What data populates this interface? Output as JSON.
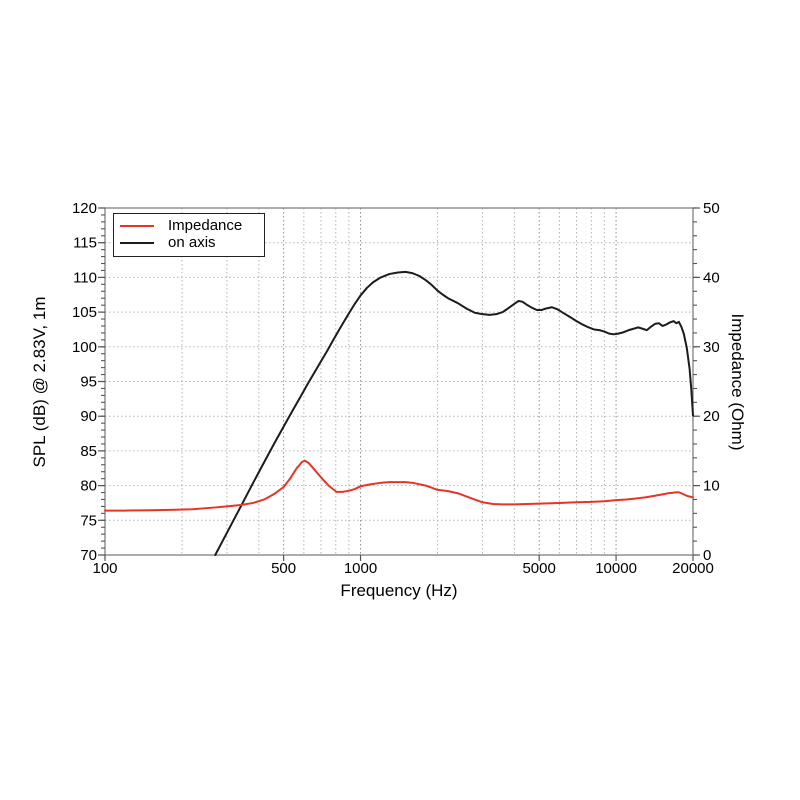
{
  "page": {
    "background": "#ffffff"
  },
  "chart_data": {
    "type": "line",
    "title": "",
    "xlabel": "Frequency (Hz)",
    "ylabel_left": "SPL (dB) @ 2.83V, 1m",
    "ylabel_right": "Impedance (Ohm)",
    "x_scale": "log",
    "x_range": [
      100,
      20000
    ],
    "y_left_range": [
      70,
      120
    ],
    "y_right_range": [
      0,
      50
    ],
    "x_ticks_labeled": [
      100,
      500,
      1000,
      5000,
      10000,
      20000
    ],
    "x_gridlines_major": [
      500,
      1000,
      5000,
      10000
    ],
    "x_gridlines_minor": [
      200,
      300,
      400,
      600,
      700,
      800,
      900,
      2000,
      3000,
      4000,
      6000,
      7000,
      8000,
      9000
    ],
    "y_left_ticks": [
      70,
      75,
      80,
      85,
      90,
      95,
      100,
      105,
      110,
      115,
      120
    ],
    "y_left_minor_step": 1,
    "y_right_ticks": [
      0,
      10,
      20,
      30,
      40,
      50
    ],
    "y_right_minor_step": 2,
    "grid": "dotted",
    "colors": {
      "grid_minor": "#b3b3b3",
      "grid_major": "#8f8f8f",
      "spine": "#808080",
      "tick": "#555555",
      "text": "#000000"
    },
    "legend": {
      "position": "top-left",
      "entries": [
        {
          "label": "Impedance",
          "color": "#e53527"
        },
        {
          "label": "on axis",
          "color": "#1c1c1c"
        }
      ]
    },
    "series": [
      {
        "name": "on axis",
        "axis": "left",
        "unit": "dB SPL",
        "color": "#1c1c1c",
        "points": [
          [
            270,
            70
          ],
          [
            300,
            73.2
          ],
          [
            340,
            77.0
          ],
          [
            380,
            80.4
          ],
          [
            420,
            83.4
          ],
          [
            460,
            86.1
          ],
          [
            500,
            88.5
          ],
          [
            540,
            90.7
          ],
          [
            580,
            92.7
          ],
          [
            620,
            94.6
          ],
          [
            660,
            96.3
          ],
          [
            700,
            97.9
          ],
          [
            740,
            99.4
          ],
          [
            780,
            100.9
          ],
          [
            820,
            102.3
          ],
          [
            860,
            103.6
          ],
          [
            900,
            104.8
          ],
          [
            950,
            106.2
          ],
          [
            1000,
            107.4
          ],
          [
            1060,
            108.5
          ],
          [
            1120,
            109.3
          ],
          [
            1200,
            110.0
          ],
          [
            1300,
            110.5
          ],
          [
            1400,
            110.7
          ],
          [
            1500,
            110.8
          ],
          [
            1600,
            110.6
          ],
          [
            1700,
            110.2
          ],
          [
            1800,
            109.6
          ],
          [
            1900,
            108.9
          ],
          [
            2000,
            108.1
          ],
          [
            2100,
            107.5
          ],
          [
            2200,
            107.0
          ],
          [
            2400,
            106.3
          ],
          [
            2600,
            105.5
          ],
          [
            2800,
            104.9
          ],
          [
            3000,
            104.7
          ],
          [
            3200,
            104.6
          ],
          [
            3400,
            104.7
          ],
          [
            3600,
            105.0
          ],
          [
            3800,
            105.6
          ],
          [
            4000,
            106.2
          ],
          [
            4150,
            106.6
          ],
          [
            4300,
            106.5
          ],
          [
            4500,
            106.0
          ],
          [
            4700,
            105.6
          ],
          [
            4900,
            105.3
          ],
          [
            5100,
            105.3
          ],
          [
            5300,
            105.5
          ],
          [
            5600,
            105.7
          ],
          [
            5900,
            105.4
          ],
          [
            6200,
            104.9
          ],
          [
            6600,
            104.3
          ],
          [
            7000,
            103.7
          ],
          [
            7400,
            103.2
          ],
          [
            7800,
            102.8
          ],
          [
            8200,
            102.5
          ],
          [
            8600,
            102.4
          ],
          [
            9000,
            102.2
          ],
          [
            9400,
            101.9
          ],
          [
            9800,
            101.8
          ],
          [
            10200,
            101.9
          ],
          [
            10700,
            102.1
          ],
          [
            11200,
            102.4
          ],
          [
            11700,
            102.6
          ],
          [
            12200,
            102.8
          ],
          [
            12700,
            102.6
          ],
          [
            13200,
            102.4
          ],
          [
            13700,
            102.9
          ],
          [
            14200,
            103.3
          ],
          [
            14700,
            103.4
          ],
          [
            15200,
            103.0
          ],
          [
            15700,
            103.2
          ],
          [
            16200,
            103.5
          ],
          [
            16800,
            103.7
          ],
          [
            17200,
            103.4
          ],
          [
            17600,
            103.6
          ],
          [
            18000,
            102.9
          ],
          [
            18400,
            101.9
          ],
          [
            18900,
            99.9
          ],
          [
            19400,
            96.8
          ],
          [
            19700,
            93.8
          ],
          [
            20000,
            90.1
          ]
        ]
      },
      {
        "name": "Impedance",
        "axis": "right",
        "unit": "Ohm",
        "color": "#e53527",
        "points": [
          [
            100,
            6.4
          ],
          [
            120,
            6.4
          ],
          [
            150,
            6.45
          ],
          [
            180,
            6.5
          ],
          [
            220,
            6.6
          ],
          [
            260,
            6.8
          ],
          [
            300,
            7.0
          ],
          [
            340,
            7.2
          ],
          [
            380,
            7.5
          ],
          [
            420,
            8.0
          ],
          [
            460,
            8.8
          ],
          [
            500,
            9.8
          ],
          [
            530,
            11.0
          ],
          [
            560,
            12.4
          ],
          [
            590,
            13.4
          ],
          [
            605,
            13.6
          ],
          [
            625,
            13.3
          ],
          [
            650,
            12.6
          ],
          [
            700,
            11.2
          ],
          [
            750,
            10.0
          ],
          [
            805,
            9.1
          ],
          [
            850,
            9.1
          ],
          [
            900,
            9.25
          ],
          [
            950,
            9.5
          ],
          [
            1000,
            9.9
          ],
          [
            1100,
            10.2
          ],
          [
            1200,
            10.4
          ],
          [
            1300,
            10.5
          ],
          [
            1400,
            10.5
          ],
          [
            1500,
            10.5
          ],
          [
            1600,
            10.4
          ],
          [
            1800,
            10.0
          ],
          [
            2000,
            9.4
          ],
          [
            2200,
            9.2
          ],
          [
            2400,
            8.9
          ],
          [
            2700,
            8.2
          ],
          [
            3000,
            7.6
          ],
          [
            3300,
            7.35
          ],
          [
            3600,
            7.3
          ],
          [
            4000,
            7.3
          ],
          [
            4500,
            7.35
          ],
          [
            5000,
            7.4
          ],
          [
            6000,
            7.5
          ],
          [
            7000,
            7.6
          ],
          [
            8000,
            7.65
          ],
          [
            9000,
            7.75
          ],
          [
            10000,
            7.9
          ],
          [
            11000,
            8.0
          ],
          [
            12000,
            8.15
          ],
          [
            13000,
            8.3
          ],
          [
            14000,
            8.5
          ],
          [
            15000,
            8.7
          ],
          [
            16000,
            8.9
          ],
          [
            17000,
            9.0
          ],
          [
            17500,
            9.05
          ],
          [
            18000,
            8.9
          ],
          [
            19000,
            8.5
          ],
          [
            20000,
            8.3
          ]
        ]
      }
    ]
  }
}
